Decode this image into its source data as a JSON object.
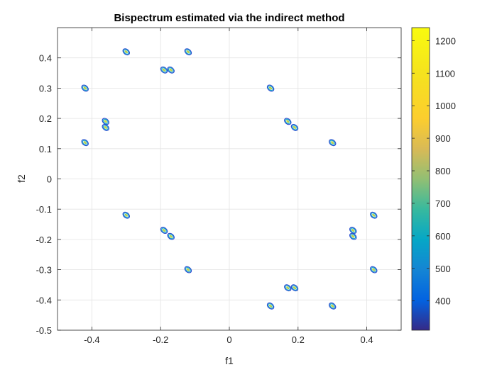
{
  "chart_data": {
    "type": "contour",
    "title": "Bispectrum estimated via the indirect method",
    "xlabel": "f1",
    "ylabel": "f2",
    "xlim": [
      -0.5,
      0.5
    ],
    "ylim": [
      -0.5,
      0.5
    ],
    "xticks": [
      -0.4,
      -0.2,
      0,
      0.2,
      0.4
    ],
    "xtick_labels": [
      "-0.4",
      "-0.2",
      "0",
      "0.2",
      "0.4"
    ],
    "yticks": [
      -0.5,
      -0.4,
      -0.3,
      -0.2,
      -0.1,
      0,
      0.1,
      0.2,
      0.3,
      0.4
    ],
    "ytick_labels": [
      "-0.5",
      "-0.4",
      "-0.3",
      "-0.2",
      "-0.1",
      "0",
      "0.1",
      "0.2",
      "0.3",
      "0.4"
    ],
    "grid": true,
    "colormap": "parula",
    "colorbar": {
      "range": [
        310,
        1240
      ],
      "ticks": [
        400,
        500,
        600,
        700,
        800,
        900,
        1000,
        1100,
        1200
      ],
      "tick_labels": [
        "400",
        "500",
        "600",
        "700",
        "800",
        "900",
        "1000",
        "1100",
        "1200"
      ]
    },
    "peaks": [
      {
        "x": -0.3,
        "y": 0.42
      },
      {
        "x": -0.12,
        "y": 0.42
      },
      {
        "x": -0.19,
        "y": 0.36
      },
      {
        "x": -0.17,
        "y": 0.36
      },
      {
        "x": -0.42,
        "y": 0.3
      },
      {
        "x": 0.12,
        "y": 0.3
      },
      {
        "x": -0.36,
        "y": 0.19
      },
      {
        "x": -0.36,
        "y": 0.17
      },
      {
        "x": 0.17,
        "y": 0.19
      },
      {
        "x": 0.19,
        "y": 0.17
      },
      {
        "x": -0.42,
        "y": 0.12
      },
      {
        "x": 0.3,
        "y": 0.12
      },
      {
        "x": -0.3,
        "y": -0.12
      },
      {
        "x": 0.42,
        "y": -0.12
      },
      {
        "x": -0.19,
        "y": -0.17
      },
      {
        "x": -0.17,
        "y": -0.19
      },
      {
        "x": 0.36,
        "y": -0.17
      },
      {
        "x": 0.36,
        "y": -0.19
      },
      {
        "x": -0.12,
        "y": -0.3
      },
      {
        "x": 0.42,
        "y": -0.3
      },
      {
        "x": 0.17,
        "y": -0.36
      },
      {
        "x": 0.19,
        "y": -0.36
      },
      {
        "x": 0.12,
        "y": -0.42
      },
      {
        "x": 0.3,
        "y": -0.42
      }
    ]
  }
}
